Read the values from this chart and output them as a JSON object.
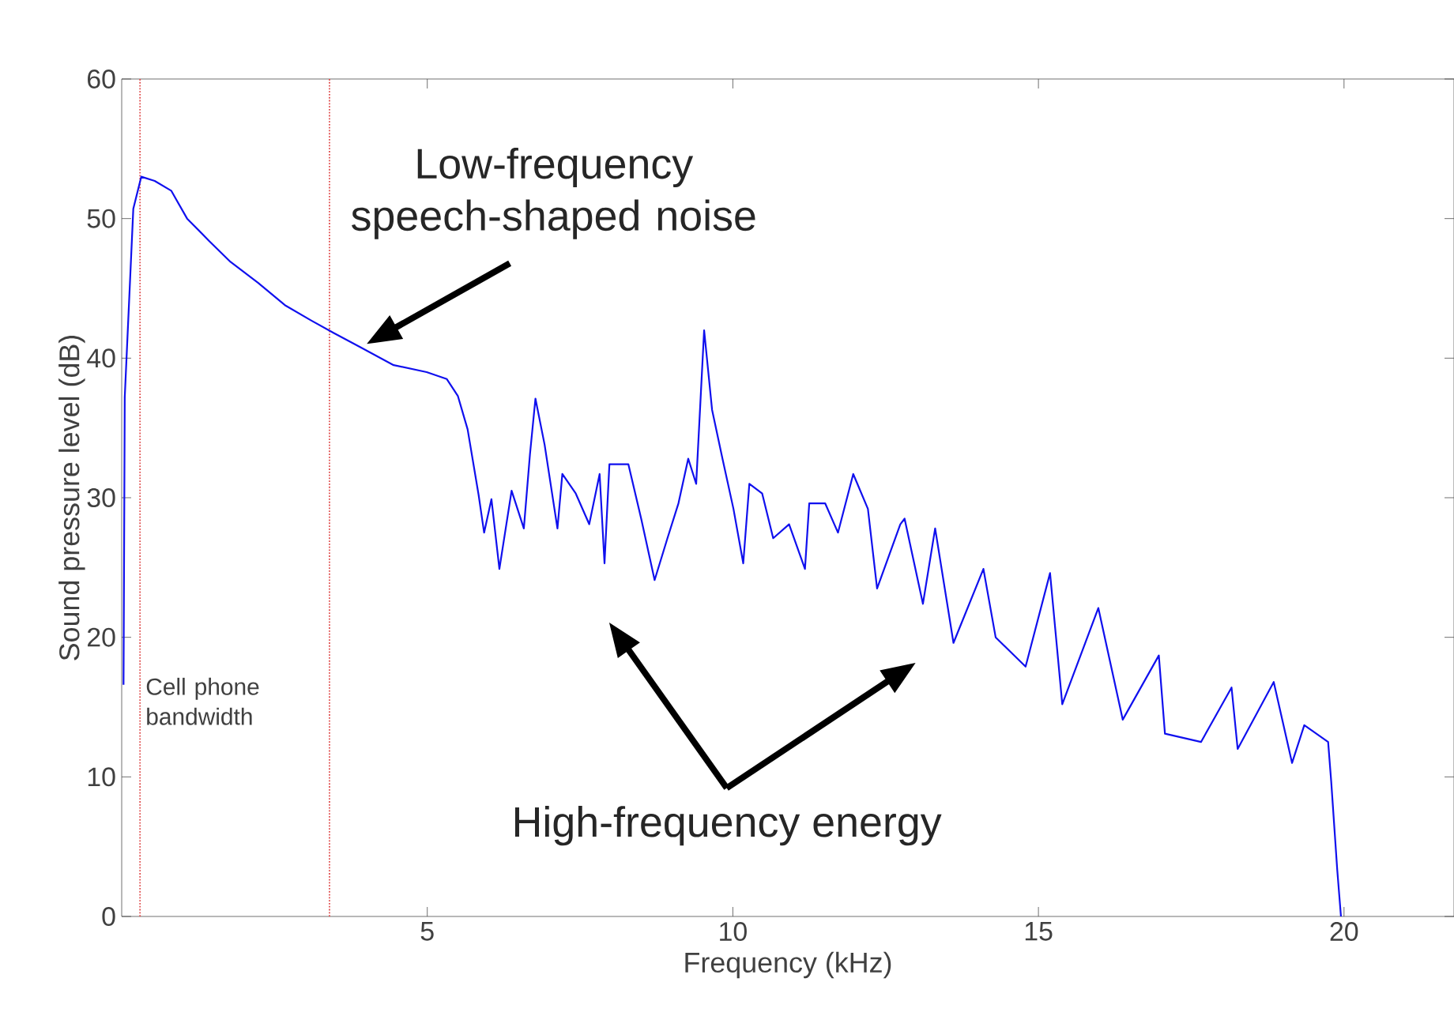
{
  "chart_data": {
    "type": "line",
    "xlabel": "Frequency (kHz)",
    "ylabel": "Sound pressure level (dB)",
    "xlim": [
      0,
      21.8
    ],
    "ylim": [
      0,
      60
    ],
    "xticks": [
      5,
      10,
      15,
      20
    ],
    "yticks": [
      0,
      10,
      20,
      30,
      40,
      50,
      60
    ],
    "series": [
      {
        "color": "#1010ee",
        "x": [
          0.03,
          0.05,
          0.19,
          0.32,
          0.54,
          0.81,
          1.07,
          1.43,
          1.78,
          2.23,
          2.67,
          3.1,
          3.47,
          3.9,
          4.45,
          4.99,
          5.32,
          5.5,
          5.66,
          5.84,
          5.93,
          6.05,
          6.18,
          6.38,
          6.58,
          6.68,
          6.77,
          6.92,
          7.13,
          7.21,
          7.43,
          7.65,
          7.82,
          7.9,
          7.98,
          8.29,
          8.5,
          8.72,
          8.93,
          9.11,
          9.27,
          9.4,
          9.53,
          9.66,
          9.83,
          10.01,
          10.17,
          10.27,
          10.48,
          10.66,
          10.92,
          11.18,
          11.25,
          11.51,
          11.72,
          11.97,
          12.21,
          12.36,
          12.74,
          12.81,
          13.11,
          13.31,
          13.61,
          14.1,
          14.3,
          14.79,
          15.19,
          15.39,
          15.98,
          16.38,
          16.97,
          17.07,
          17.66,
          18.16,
          18.26,
          18.85,
          19.15,
          19.35,
          19.74,
          19.79,
          19.89,
          19.95
        ],
        "values": [
          16.6,
          37.2,
          50.7,
          53,
          52.7,
          52,
          50,
          48.4,
          46.9,
          45.4,
          43.8,
          42.7,
          41.8,
          40.8,
          39.5,
          39,
          38.5,
          37.3,
          34.9,
          30.2,
          27.5,
          29.9,
          24.9,
          30.5,
          27.8,
          33.1,
          37.1,
          33.8,
          27.8,
          31.7,
          30.3,
          28.1,
          31.7,
          25.3,
          32.4,
          32.4,
          28.5,
          24.1,
          27.1,
          29.6,
          32.8,
          31,
          42,
          36.3,
          32.8,
          29.2,
          25.3,
          31,
          30.3,
          27.1,
          28.1,
          24.9,
          29.6,
          29.6,
          27.5,
          31.7,
          29.2,
          23.5,
          28.1,
          28.5,
          22.4,
          27.8,
          19.6,
          24.9,
          20,
          17.9,
          24.6,
          15.2,
          22.1,
          14.1,
          18.7,
          13.1,
          12.5,
          16.4,
          12,
          16.8,
          11,
          13.7,
          12.5,
          9.7,
          3.3,
          0
        ]
      }
    ],
    "ref_lines": [
      {
        "axis": "x",
        "value": 0.3,
        "label": "Cell phone bandwidth",
        "color": "#e05050",
        "line_style": "dotted"
      },
      {
        "axis": "x",
        "value": 3.4,
        "color": "#e05050",
        "line_style": "dotted"
      }
    ],
    "annotations": [
      {
        "text": "Low-frequency speech-shaped noise",
        "x": 4.0,
        "y": 41
      },
      "High-frequency energy"
    ]
  }
}
